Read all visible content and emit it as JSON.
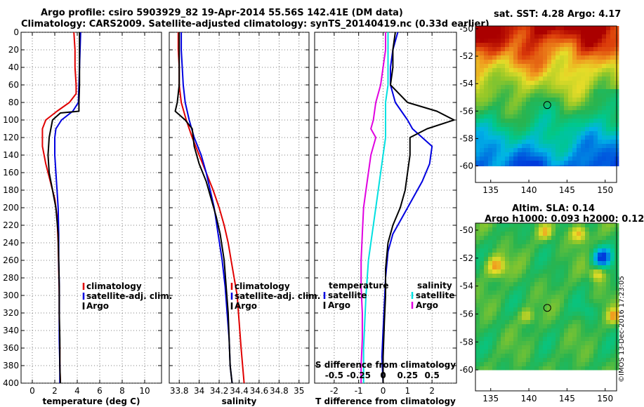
{
  "titles": {
    "line1": "Argo profile: csiro 5903929_82 19-Apr-2014 55.56S 142.41E (DM data)",
    "line2": "Climatology: CARS2009. Satellite-adjusted climatology: synTS_20140419.nc (0.33d earlier)"
  },
  "sst_map": {
    "title": "sat. SST: 4.28 Argo: 4.17"
  },
  "sla_map": {
    "title1": "Altim. SLA: 0.14",
    "title2": "Argo h1000: 0.093 h2000: 0.12"
  },
  "credit": "©IMOS 13-Dec-2016 17:23:05",
  "colors": {
    "climatology": "#e00000",
    "satellite": "#0000e0",
    "argo": "#000000",
    "sat_salinity": "#00e0e0",
    "argo_salinity": "#e000e0"
  },
  "chart_data": [
    {
      "type": "line",
      "id": "temperature",
      "xlabel": "temperature (deg C)",
      "ylabel": "",
      "xlim": [
        -1,
        11.5
      ],
      "ylim": [
        400,
        0
      ],
      "xticks": [
        0,
        2,
        4,
        6,
        8,
        10
      ],
      "xtick_labels": [
        "0",
        "2",
        "4",
        "6",
        "8",
        "10"
      ],
      "yticks": [
        0,
        20,
        40,
        60,
        80,
        100,
        120,
        140,
        160,
        180,
        200,
        220,
        240,
        260,
        280,
        300,
        320,
        340,
        360,
        380,
        400
      ],
      "ytick_labels": [
        "0",
        "20",
        "40",
        "60",
        "80",
        "100",
        "120",
        "140",
        "160",
        "180",
        "200",
        "220",
        "240",
        "260",
        "280",
        "300",
        "320",
        "340",
        "360",
        "380",
        "400"
      ],
      "legend": [
        "climatology",
        "satellite-adj. clim.",
        "Argo"
      ],
      "series": [
        {
          "name": "climatology",
          "color_key": "climatology",
          "x": [
            3.7,
            3.8,
            3.8,
            3.9,
            3.9,
            3.3,
            2.2,
            1.2,
            0.9,
            0.9,
            1.2,
            1.6,
            2.0,
            2.2,
            2.3,
            2.35,
            2.4,
            2.4,
            2.45,
            2.45,
            2.5
          ],
          "y": [
            0,
            20,
            40,
            60,
            70,
            80,
            90,
            100,
            110,
            130,
            150,
            170,
            190,
            210,
            240,
            270,
            300,
            330,
            360,
            380,
            400
          ]
        },
        {
          "name": "satellite-adj. clim.",
          "color_key": "satellite",
          "x": [
            4.3,
            4.25,
            4.2,
            4.15,
            4.1,
            3.6,
            2.6,
            2.1,
            2.0,
            2.0,
            2.1,
            2.2,
            2.3,
            2.35,
            2.35,
            2.4,
            2.4,
            2.4,
            2.45,
            2.45
          ],
          "y": [
            0,
            20,
            40,
            60,
            80,
            90,
            100,
            110,
            120,
            140,
            160,
            180,
            200,
            230,
            260,
            290,
            320,
            350,
            380,
            400
          ]
        },
        {
          "name": "Argo",
          "color_key": "argo",
          "x": [
            4.2,
            4.2,
            4.2,
            4.2,
            4.15,
            4.15,
            2.5,
            1.8,
            1.5,
            1.4,
            1.5,
            1.8,
            2.1,
            2.3,
            2.35,
            2.4,
            2.4,
            2.45,
            2.45,
            2.5
          ],
          "y": [
            0,
            20,
            40,
            60,
            80,
            90,
            92,
            100,
            120,
            140,
            160,
            180,
            200,
            230,
            260,
            290,
            320,
            350,
            380,
            400
          ]
        }
      ]
    },
    {
      "type": "line",
      "id": "salinity",
      "xlabel": "salinity",
      "ylabel": "",
      "xlim": [
        33.7,
        35.1
      ],
      "ylim": [
        400,
        0
      ],
      "xticks": [
        33.8,
        34.0,
        34.2,
        34.4,
        34.6,
        34.8,
        35.0
      ],
      "xtick_labels": [
        "33.8",
        "34",
        "34.2",
        "34.4",
        "34.6",
        "34.8",
        "35"
      ],
      "legend": [
        "climatology",
        "satellite-adj. clim.",
        "Argo"
      ],
      "series": [
        {
          "name": "climatology",
          "color_key": "climatology",
          "x": [
            33.79,
            33.79,
            33.8,
            33.8,
            33.82,
            33.87,
            33.93,
            34.0,
            34.07,
            34.14,
            34.2,
            34.25,
            34.29,
            34.32,
            34.35,
            34.38,
            34.4,
            34.42,
            34.45
          ],
          "y": [
            0,
            20,
            40,
            60,
            80,
            100,
            120,
            140,
            160,
            180,
            200,
            220,
            240,
            260,
            280,
            300,
            330,
            360,
            400
          ]
        },
        {
          "name": "satellite-adj. clim.",
          "color_key": "satellite",
          "x": [
            33.82,
            33.82,
            33.83,
            33.84,
            33.86,
            33.9,
            33.95,
            34.02,
            34.07,
            34.11,
            34.15,
            34.19,
            34.23,
            34.26,
            34.28,
            34.3,
            34.31,
            34.33
          ],
          "y": [
            0,
            20,
            40,
            60,
            80,
            100,
            120,
            140,
            160,
            180,
            200,
            230,
            260,
            290,
            320,
            350,
            380,
            400
          ]
        },
        {
          "name": "Argo",
          "color_key": "argo",
          "x": [
            33.8,
            33.8,
            33.8,
            33.8,
            33.78,
            33.76,
            33.86,
            33.93,
            33.95,
            34.0,
            34.07,
            34.12,
            34.17,
            34.21,
            34.25,
            34.27,
            34.29,
            34.3,
            34.31,
            34.33
          ],
          "y": [
            0,
            20,
            40,
            60,
            80,
            90,
            100,
            110,
            130,
            150,
            170,
            190,
            210,
            230,
            260,
            290,
            320,
            350,
            380,
            400
          ]
        }
      ]
    },
    {
      "type": "line",
      "id": "differences",
      "xlabel": "T difference from climatology",
      "top_xlabel": "S difference from climatology",
      "xlim": [
        -2.8,
        3
      ],
      "ylim": [
        400,
        0
      ],
      "xticks": [
        -2,
        -1,
        0,
        1,
        2
      ],
      "xtick_labels": [
        "-2",
        "-1",
        "0",
        "1",
        "2"
      ],
      "top_xticks": [
        -2,
        -1,
        0,
        1,
        2
      ],
      "top_xtick_labels": [
        "-0.5",
        "-0.25",
        "0",
        "0.25",
        "0.5"
      ],
      "legend_temperature": {
        "title": "temperature",
        "items": [
          "satellite",
          "Argo"
        ]
      },
      "legend_salinity": {
        "title": "salinity",
        "items": [
          "satellite",
          "Argo"
        ]
      },
      "series": [
        {
          "name": "temperature satellite",
          "color_key": "satellite",
          "x": [
            0.6,
            0.4,
            0.3,
            0.3,
            0.5,
            1.0,
            1.2,
            1.6,
            2.0,
            1.9,
            1.6,
            1.2,
            0.8,
            0.4,
            0.2,
            0.1,
            0.05,
            0.0,
            -0.05,
            0.0
          ],
          "y": [
            0,
            20,
            40,
            60,
            80,
            100,
            110,
            120,
            130,
            150,
            170,
            190,
            210,
            230,
            250,
            280,
            310,
            340,
            370,
            400
          ]
        },
        {
          "name": "temperature Argo",
          "color_key": "argo",
          "x": [
            0.5,
            0.4,
            0.4,
            0.3,
            1.0,
            2.2,
            2.9,
            1.8,
            1.1,
            1.1,
            1.0,
            0.9,
            0.7,
            0.4,
            0.2,
            0.1,
            0.1,
            0.05,
            0.0,
            0.0
          ],
          "y": [
            0,
            20,
            40,
            60,
            80,
            90,
            100,
            110,
            120,
            140,
            160,
            180,
            200,
            220,
            240,
            270,
            300,
            330,
            370,
            400
          ]
        },
        {
          "name": "salinity satellite",
          "color_key": "sat_salinity",
          "x": [
            0.2,
            0.2,
            0.2,
            0.2,
            0.1,
            0.1,
            0.1,
            0.0,
            -0.1,
            -0.2,
            -0.3,
            -0.4,
            -0.5,
            -0.6,
            -0.65,
            -0.7,
            -0.75,
            -0.8,
            -0.8
          ],
          "y": [
            0,
            20,
            40,
            60,
            80,
            100,
            120,
            140,
            160,
            180,
            200,
            220,
            240,
            260,
            280,
            300,
            330,
            360,
            400
          ]
        },
        {
          "name": "salinity Argo",
          "color_key": "argo_salinity",
          "x": [
            0.1,
            0.1,
            0.0,
            -0.1,
            -0.3,
            -0.4,
            -0.5,
            -0.3,
            -0.5,
            -0.6,
            -0.7,
            -0.8,
            -0.85,
            -0.9,
            -0.9,
            -0.85,
            -0.85,
            -0.9,
            -0.9
          ],
          "y": [
            0,
            20,
            40,
            60,
            80,
            100,
            110,
            120,
            140,
            160,
            180,
            200,
            230,
            260,
            290,
            320,
            350,
            380,
            400
          ]
        }
      ]
    },
    {
      "type": "heatmap",
      "id": "sst_map",
      "title": "sat. SST: 4.28 Argo: 4.17",
      "xlim": [
        133,
        151.5
      ],
      "ylim": [
        -61.2,
        -49.8
      ],
      "data_ylim": [
        -60,
        -49.8
      ],
      "xticks": [
        135,
        140,
        145,
        150
      ],
      "xtick_labels": [
        "135",
        "140",
        "145",
        "150"
      ],
      "yticks": [
        -50,
        -52,
        -54,
        -56,
        -58,
        -60
      ],
      "ytick_labels": [
        "-50",
        "-52",
        "-54",
        "-56",
        "-58",
        "-60"
      ],
      "marker": {
        "lon": 142.41,
        "lat": -55.56
      }
    },
    {
      "type": "heatmap",
      "id": "sla_map",
      "title": "Altim. SLA: 0.14 / Argo h1000: 0.093 h2000: 0.12",
      "xlim": [
        133,
        151.5
      ],
      "ylim": [
        -61.5,
        -49.5
      ],
      "data_ylim": [
        -60,
        -49.5
      ],
      "xticks": [
        135,
        140,
        145,
        150
      ],
      "xtick_labels": [
        "135",
        "140",
        "145",
        "150"
      ],
      "yticks": [
        -50,
        -52,
        -54,
        -56,
        -58,
        -60
      ],
      "ytick_labels": [
        "-50",
        "-52",
        "-54",
        "-56",
        "-58",
        "-60"
      ],
      "marker": {
        "lon": 142.41,
        "lat": -55.56
      }
    }
  ]
}
